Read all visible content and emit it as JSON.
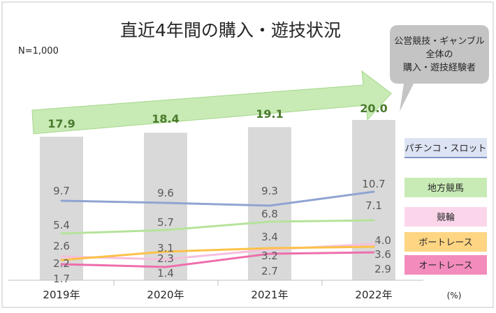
{
  "chart_data": {
    "type": "bar",
    "title": "直近4年間の購入・遊技状況",
    "note": "N=1,000",
    "unit": "(%)",
    "categories": [
      "2019年",
      "2020年",
      "2021年",
      "2022年"
    ],
    "ylim": [
      0,
      25
    ],
    "grid": false,
    "legend_position": "right",
    "bar_series": {
      "name": "公営競技・ギャンブル全体の購入・遊技経験者",
      "name_lines": [
        "公営競技・ギャンブル",
        "全体の",
        "購入・遊技経験者"
      ],
      "values": [
        17.9,
        18.4,
        19.1,
        20.0
      ],
      "labels": [
        "17.9",
        "18.4",
        "19.1",
        "20.0"
      ],
      "color": "#d9d9d9",
      "label_color": "#4a7a2e"
    },
    "series": [
      {
        "name": "パチンコ・スロット",
        "values": [
          9.7,
          9.6,
          9.3,
          10.7
        ],
        "labels": [
          "9.7",
          "9.6",
          "9.3",
          "10.7"
        ],
        "color": "#8fa4d2",
        "legend_bg": "#dce3f3"
      },
      {
        "name": "地方競馬",
        "values": [
          5.4,
          5.7,
          6.8,
          7.1
        ],
        "labels": [
          "5.4",
          "5.7",
          "6.8",
          "7.1"
        ],
        "color": "#b5e39b",
        "legend_bg": "#c8ebb5"
      },
      {
        "name": "競輪",
        "values": [
          2.6,
          2.3,
          3.4,
          3.6
        ],
        "labels": [
          "2.6",
          "2.3",
          "3.4",
          "3.6"
        ],
        "color": "#f6bfdd",
        "legend_bg": "#fbd6eb"
      },
      {
        "name": "ボートレース",
        "values": [
          2.2,
          3.1,
          3.2,
          4.0
        ],
        "labels": [
          "2.2",
          "3.1",
          "3.2",
          "4.0"
        ],
        "color": "#fcc248",
        "legend_bg": "#fdd583"
      },
      {
        "name": "オートレース",
        "values": [
          1.7,
          1.4,
          2.7,
          2.9
        ],
        "labels": [
          "1.7",
          "1.4",
          "2.7",
          "2.9"
        ],
        "color": "#ee6eac",
        "legend_bg": "#f38cbd"
      }
    ]
  }
}
